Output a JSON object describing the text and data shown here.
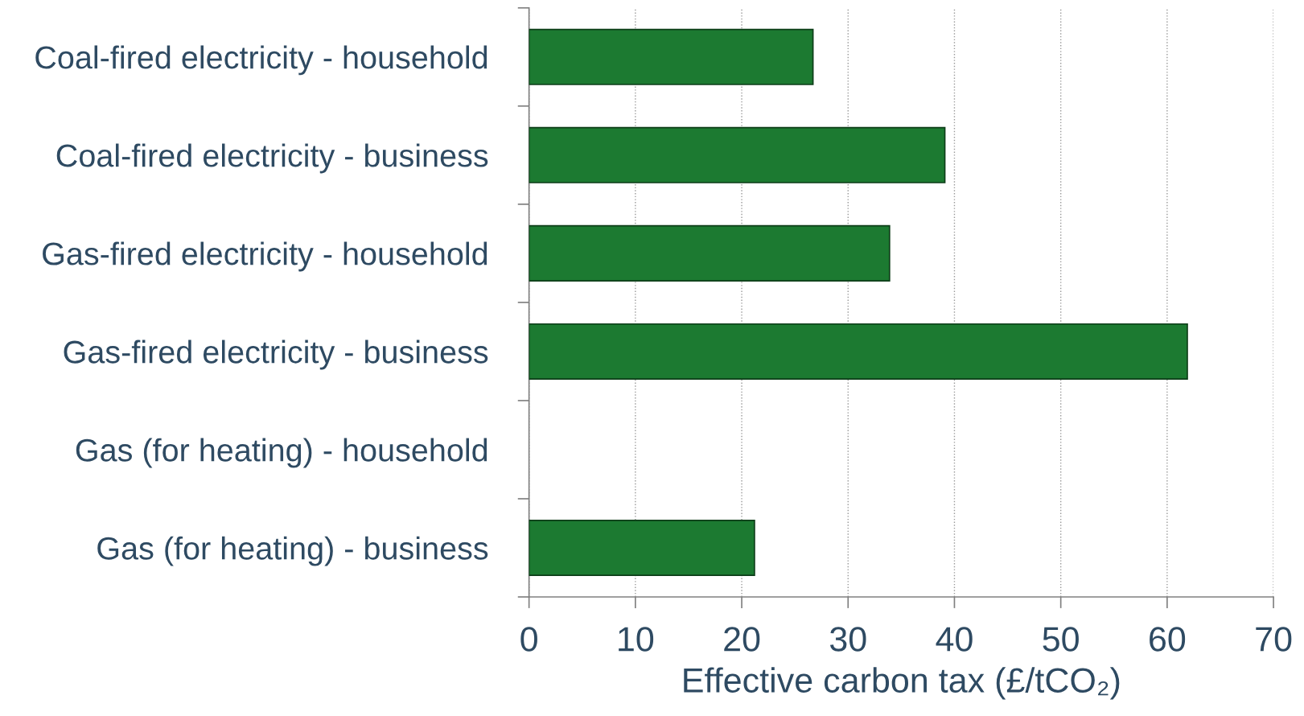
{
  "chart_data": {
    "type": "bar",
    "orientation": "horizontal",
    "xlabel": "Effective carbon tax (£/tCO₂)",
    "categories": [
      "Coal-fired electricity - household",
      "Coal-fired electricity - business",
      "Gas-fired electricity - household",
      "Gas-fired electricity - business",
      "Gas (for heating) - household",
      "Gas (for heating) - business"
    ],
    "values": [
      26.7,
      39.1,
      33.9,
      61.9,
      0,
      21.2
    ],
    "color": "#1c7a31",
    "xlim": [
      0,
      70
    ],
    "xticks": [
      0,
      10,
      20,
      30,
      40,
      50,
      60,
      70
    ],
    "grid": "x",
    "legend": false
  }
}
